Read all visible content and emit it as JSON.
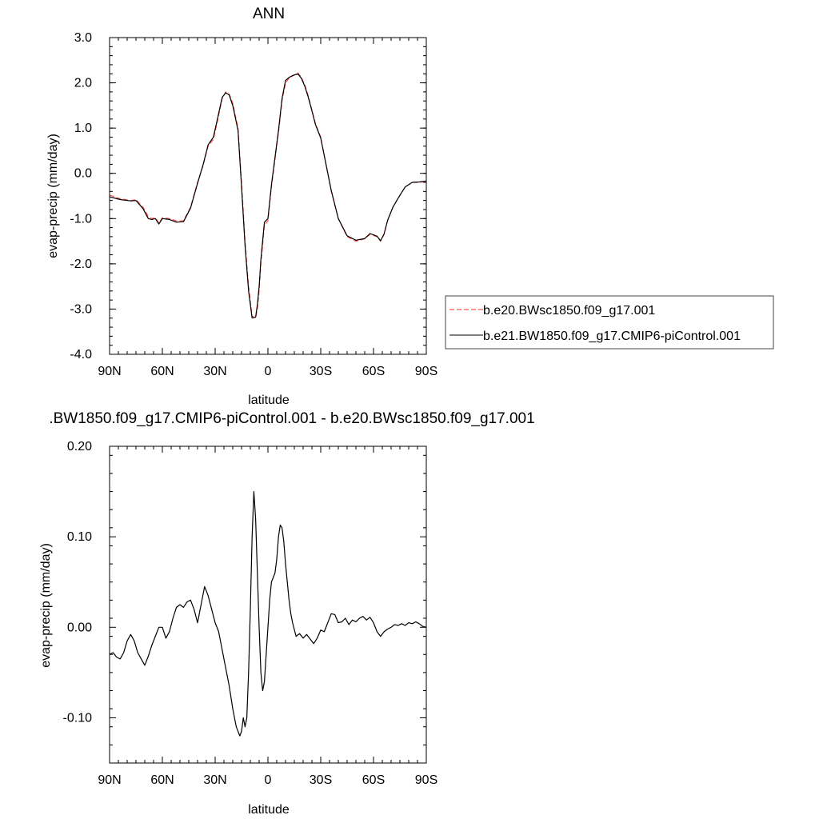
{
  "chart_data": [
    {
      "type": "line",
      "title": "ANN",
      "xlabel": "latitude",
      "ylabel": "evap-precip (mm/day)",
      "xlim": [
        90,
        -90
      ],
      "ylim": [
        -4.0,
        3.0
      ],
      "xticks": [
        {
          "value": 90,
          "label": "90N"
        },
        {
          "value": 60,
          "label": "60N"
        },
        {
          "value": 30,
          "label": "30N"
        },
        {
          "value": 0,
          "label": "0"
        },
        {
          "value": -30,
          "label": "30S"
        },
        {
          "value": -60,
          "label": "60S"
        },
        {
          "value": -90,
          "label": "90S"
        }
      ],
      "yticks": [
        {
          "value": 3.0,
          "label": "3.0"
        },
        {
          "value": 2.0,
          "label": "2.0"
        },
        {
          "value": 1.0,
          "label": "1.0"
        },
        {
          "value": 0.0,
          "label": "0.0"
        },
        {
          "value": -1.0,
          "label": "-1.0"
        },
        {
          "value": -2.0,
          "label": "-2.0"
        },
        {
          "value": -3.0,
          "label": "-3.0"
        },
        {
          "value": -4.0,
          "label": "-4.0"
        }
      ],
      "grid": false,
      "legend_position": "right",
      "series": [
        {
          "name": "b.e20.BWsc1850.f09_g17.001",
          "color": "#ff5050",
          "dash": true,
          "x": [
            90,
            84,
            78,
            75,
            71,
            68,
            66,
            64,
            62,
            60,
            56,
            52,
            48,
            44,
            40,
            37,
            34,
            31,
            29,
            26,
            24,
            22,
            20,
            17,
            15,
            13,
            11,
            9,
            7,
            6,
            5,
            4,
            2,
            0,
            -2,
            -4,
            -6,
            -8,
            -10,
            -12,
            -14,
            -17,
            -19,
            -21,
            -23,
            -25,
            -27,
            -30,
            -33,
            -36,
            -40,
            -45,
            -50,
            -55,
            -58,
            -62,
            -64,
            -66,
            -68,
            -71,
            -74,
            -78,
            -82,
            -86,
            -90
          ],
          "y": [
            -0.48,
            -0.56,
            -0.6,
            -0.58,
            -0.75,
            -0.95,
            -1.0,
            -0.98,
            -1.1,
            -0.98,
            -1.0,
            -1.05,
            -1.05,
            -0.75,
            -0.2,
            0.15,
            0.6,
            0.75,
            1.1,
            1.65,
            1.8,
            1.75,
            1.55,
            1.0,
            -0.2,
            -1.5,
            -2.5,
            -3.15,
            -3.2,
            -3.0,
            -2.6,
            -2.0,
            -1.15,
            -1.05,
            -0.3,
            0.3,
            0.9,
            1.6,
            2.0,
            2.1,
            2.15,
            2.22,
            2.12,
            1.95,
            1.7,
            1.4,
            1.1,
            0.8,
            0.2,
            -0.4,
            -1.0,
            -1.4,
            -1.5,
            -1.45,
            -1.35,
            -1.4,
            -1.5,
            -1.35,
            -1.05,
            -0.75,
            -0.55,
            -0.3,
            -0.2,
            -0.2,
            -0.18
          ]
        },
        {
          "name": "b.e21.BW1850.f09_g17.CMIP6-piControl.001",
          "color": "#000000",
          "dash": false,
          "x": [
            90,
            84,
            78,
            75,
            71,
            68,
            66,
            64,
            62,
            60,
            56,
            52,
            48,
            44,
            40,
            37,
            34,
            31,
            29,
            26,
            24,
            22,
            20,
            17,
            15,
            13,
            11,
            9,
            7,
            6,
            5,
            4,
            2,
            0,
            -2,
            -4,
            -6,
            -8,
            -10,
            -12,
            -14,
            -17,
            -19,
            -21,
            -23,
            -25,
            -27,
            -30,
            -33,
            -36,
            -40,
            -45,
            -50,
            -55,
            -58,
            -62,
            -64,
            -66,
            -68,
            -71,
            -74,
            -78,
            -82,
            -86,
            -90
          ],
          "y": [
            -0.52,
            -0.58,
            -0.61,
            -0.6,
            -0.78,
            -1.0,
            -1.02,
            -1.0,
            -1.12,
            -1.0,
            -1.02,
            -1.08,
            -1.07,
            -0.77,
            -0.22,
            0.17,
            0.63,
            0.8,
            1.15,
            1.68,
            1.78,
            1.73,
            1.5,
            0.95,
            -0.3,
            -1.6,
            -2.6,
            -3.2,
            -3.18,
            -2.9,
            -2.5,
            -1.9,
            -1.08,
            -1.0,
            -0.25,
            0.35,
            0.95,
            1.65,
            2.05,
            2.12,
            2.16,
            2.2,
            2.1,
            1.92,
            1.67,
            1.38,
            1.08,
            0.78,
            0.2,
            -0.38,
            -1.0,
            -1.38,
            -1.48,
            -1.44,
            -1.33,
            -1.39,
            -1.49,
            -1.34,
            -1.04,
            -0.75,
            -0.55,
            -0.3,
            -0.2,
            -0.19,
            -0.17
          ]
        }
      ]
    },
    {
      "type": "line",
      "title": ".BW1850.f09_g17.CMIP6-piControl.001 - b.e20.BWsc1850.f09_g17.001",
      "xlabel": "latitude",
      "ylabel": "evap-precip (mm/day)",
      "xlim": [
        90,
        -90
      ],
      "ylim": [
        -0.15,
        0.2
      ],
      "xticks": [
        {
          "value": 90,
          "label": "90N"
        },
        {
          "value": 60,
          "label": "60N"
        },
        {
          "value": 30,
          "label": "30N"
        },
        {
          "value": 0,
          "label": "0"
        },
        {
          "value": -30,
          "label": "30S"
        },
        {
          "value": -60,
          "label": "60S"
        },
        {
          "value": -90,
          "label": "90S"
        }
      ],
      "yticks": [
        {
          "value": 0.2,
          "label": "0.20"
        },
        {
          "value": 0.1,
          "label": "0.10"
        },
        {
          "value": 0.0,
          "label": "0.00"
        },
        {
          "value": -0.1,
          "label": "-0.10"
        }
      ],
      "grid": false,
      "series": [
        {
          "color": "#000000",
          "dash": false,
          "x": [
            90,
            88,
            86,
            84,
            82,
            80,
            78,
            76,
            74,
            72,
            70,
            68,
            66,
            64,
            62,
            60,
            58,
            56,
            54,
            52,
            50,
            48,
            46,
            44,
            42,
            40,
            38,
            36,
            34,
            32,
            30,
            28,
            26,
            24,
            22,
            20,
            18,
            16,
            15,
            14,
            13,
            12,
            11,
            10,
            9,
            8,
            7,
            6,
            5,
            4,
            3,
            2,
            1,
            0,
            -1,
            -2,
            -3,
            -4,
            -5,
            -6,
            -7,
            -8,
            -9,
            -10,
            -11,
            -12,
            -13,
            -14,
            -16,
            -18,
            -20,
            -22,
            -24,
            -26,
            -28,
            -30,
            -32,
            -34,
            -36,
            -38,
            -40,
            -42,
            -44,
            -46,
            -48,
            -50,
            -52,
            -54,
            -56,
            -58,
            -60,
            -62,
            -64,
            -66,
            -68,
            -70,
            -72,
            -74,
            -76,
            -78,
            -80,
            -82,
            -84,
            -86,
            -88,
            -90
          ],
          "y": [
            -0.03,
            -0.028,
            -0.033,
            -0.035,
            -0.028,
            -0.015,
            -0.008,
            -0.015,
            -0.028,
            -0.035,
            -0.042,
            -0.032,
            -0.02,
            -0.01,
            0.0,
            0.0,
            -0.012,
            -0.005,
            0.01,
            0.022,
            0.025,
            0.022,
            0.028,
            0.03,
            0.02,
            0.005,
            0.025,
            0.045,
            0.035,
            0.02,
            0.005,
            -0.005,
            -0.025,
            -0.045,
            -0.065,
            -0.09,
            -0.11,
            -0.12,
            -0.115,
            -0.1,
            -0.11,
            -0.1,
            -0.05,
            0.02,
            0.1,
            0.15,
            0.12,
            0.06,
            0.0,
            -0.05,
            -0.07,
            -0.06,
            -0.03,
            0.0,
            0.03,
            0.05,
            0.055,
            0.06,
            0.075,
            0.1,
            0.113,
            0.11,
            0.095,
            0.07,
            0.05,
            0.03,
            0.015,
            0.005,
            -0.01,
            -0.007,
            -0.012,
            -0.008,
            -0.013,
            -0.018,
            -0.012,
            -0.003,
            -0.005,
            0.005,
            0.015,
            0.014,
            0.005,
            0.006,
            0.01,
            0.003,
            0.008,
            0.006,
            0.01,
            0.012,
            0.008,
            0.011,
            0.005,
            -0.005,
            -0.01,
            -0.005,
            -0.002,
            0.0,
            0.003,
            0.002,
            0.004,
            0.002,
            0.005,
            0.004,
            0.006,
            0.004,
            0.001,
            0.0
          ]
        }
      ]
    }
  ]
}
